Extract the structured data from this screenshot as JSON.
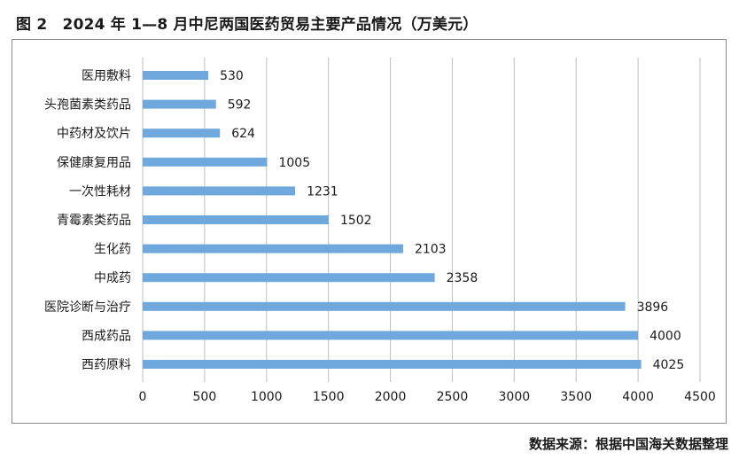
{
  "figure": {
    "title": "图 2　2024 年 1—8 月中尼两国医药贸易主要产品情况（万美元）",
    "source": "数据来源：根据中国海关数据整理"
  },
  "colors": {
    "bar": "#6fa8dc",
    "grid": "#bfbfbf",
    "text": "#1a1a1a"
  },
  "chart_data": {
    "type": "bar",
    "orientation": "horizontal",
    "categories": [
      "医用敷料",
      "头孢菌素类药品",
      "中药材及饮片",
      "保健康复用品",
      "一次性耗材",
      "青霉素类药品",
      "生化药",
      "中成药",
      "医院诊断与治疗",
      "西成药品",
      "西药原料"
    ],
    "values": [
      530,
      592,
      624,
      1005,
      1231,
      1502,
      2103,
      2358,
      3896,
      4000,
      4025
    ],
    "xticks": [
      0,
      500,
      1000,
      1500,
      2000,
      2500,
      3000,
      3500,
      4000,
      4500
    ],
    "xlim": [
      0,
      4500
    ],
    "grid": "vertical",
    "data_labels": true,
    "legend": "none"
  }
}
